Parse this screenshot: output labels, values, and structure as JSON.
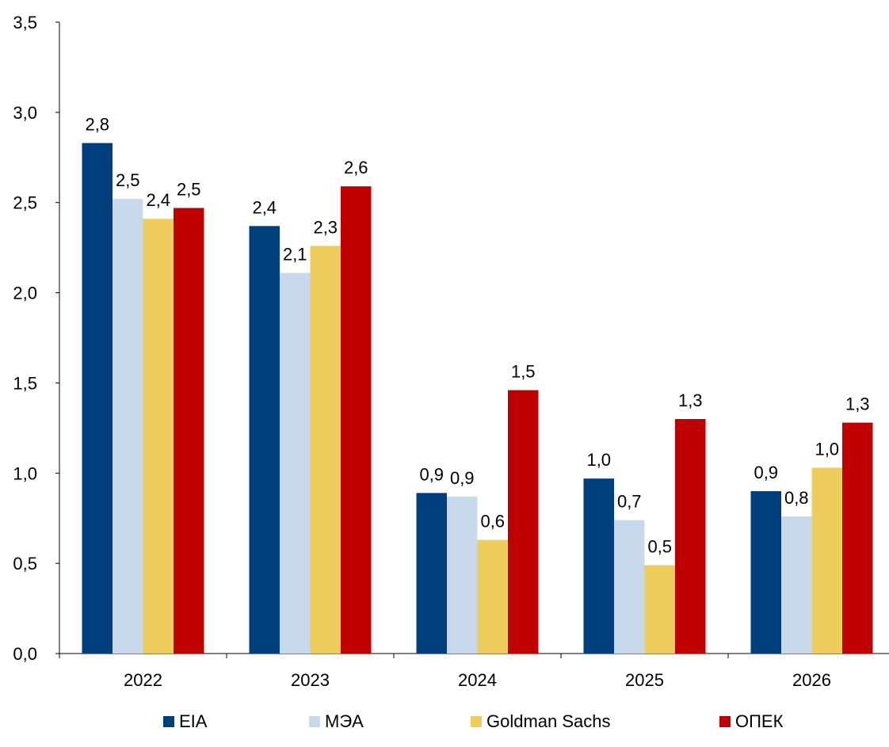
{
  "chart_data": {
    "type": "bar",
    "categories": [
      "2022",
      "2023",
      "2024",
      "2025",
      "2026"
    ],
    "series": [
      {
        "name": "EIA",
        "color": "#003f7d",
        "values": [
          2.83,
          2.37,
          0.89,
          0.97,
          0.9
        ],
        "labels": [
          "2,8",
          "2,4",
          "0,9",
          "1,0",
          "0,9"
        ]
      },
      {
        "name": "МЭА",
        "color": "#c8d9ec",
        "values": [
          2.52,
          2.11,
          0.87,
          0.74,
          0.76
        ],
        "labels": [
          "2,5",
          "2,1",
          "0,9",
          "0,7",
          "0,8"
        ]
      },
      {
        "name": "Goldman Sachs",
        "color": "#efcd5c",
        "values": [
          2.41,
          2.26,
          0.63,
          0.49,
          1.03
        ],
        "labels": [
          "2,4",
          "2,3",
          "0,6",
          "0,5",
          "1,0"
        ]
      },
      {
        "name": "ОПЕК",
        "color": "#c00000",
        "values": [
          2.47,
          2.59,
          1.46,
          1.3,
          1.28
        ],
        "labels": [
          "2,5",
          "2,6",
          "1,5",
          "1,3",
          "1,3"
        ]
      }
    ],
    "ylim": [
      0,
      3.5
    ],
    "yticks": [
      0,
      0.5,
      1.0,
      1.5,
      2.0,
      2.5,
      3.0,
      3.5
    ],
    "ytick_labels": [
      "0,0",
      "0,5",
      "1,0",
      "1,5",
      "2,0",
      "2,5",
      "3,0",
      "3,5"
    ],
    "title": "",
    "xlabel": "",
    "ylabel": "",
    "grid": false,
    "legend_position": "bottom"
  }
}
